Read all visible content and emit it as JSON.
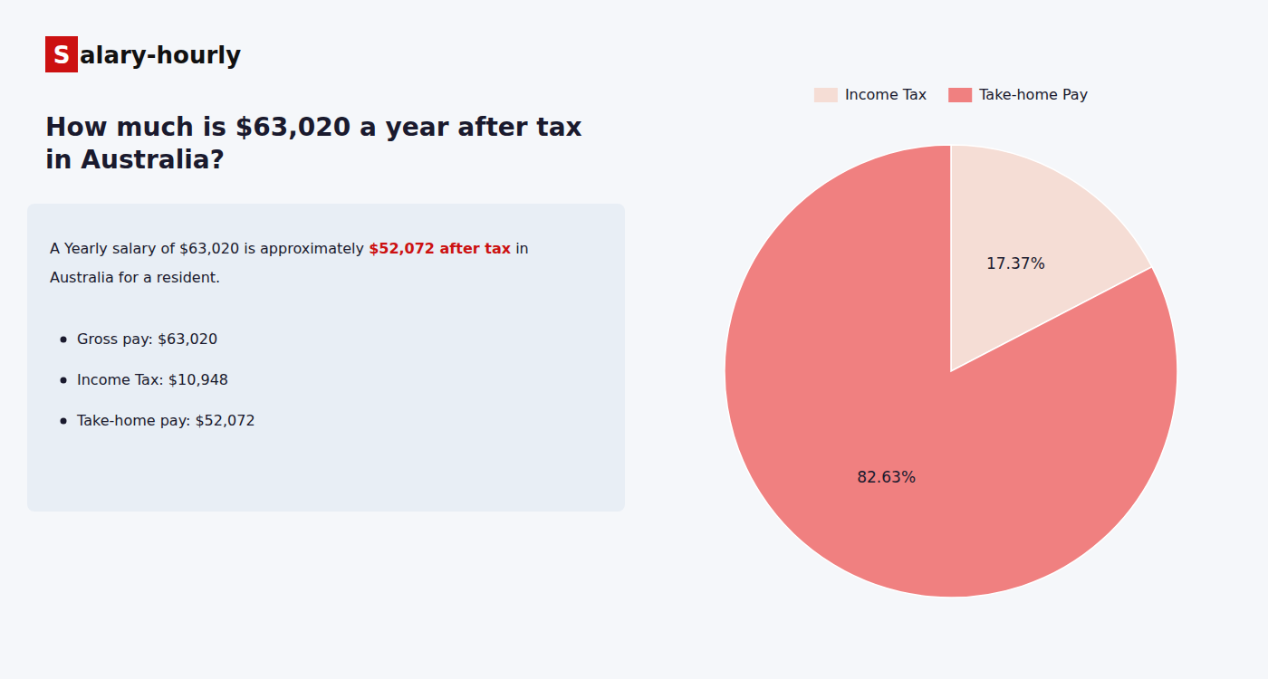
{
  "chart_data": {
    "type": "pie",
    "title": "How much is $63,020 a year after tax in Australia?",
    "categories": [
      "Income Tax",
      "Take-home Pay"
    ],
    "values": [
      17.37,
      82.63
    ],
    "value_labels": [
      "17.37%",
      "82.63%"
    ],
    "colors": [
      "#f5ddd5",
      "#f08080"
    ],
    "data_labels": true,
    "legend": "top",
    "annotations": [
      "S",
      "alary-hourly",
      "A Yearly salary of $63,020 is approximately ",
      "$52,072 after tax",
      " in",
      "Australia for a resident.",
      "Gross pay: $63,020",
      "Income Tax: $10,948",
      "Take-home pay: $52,072"
    ]
  }
}
